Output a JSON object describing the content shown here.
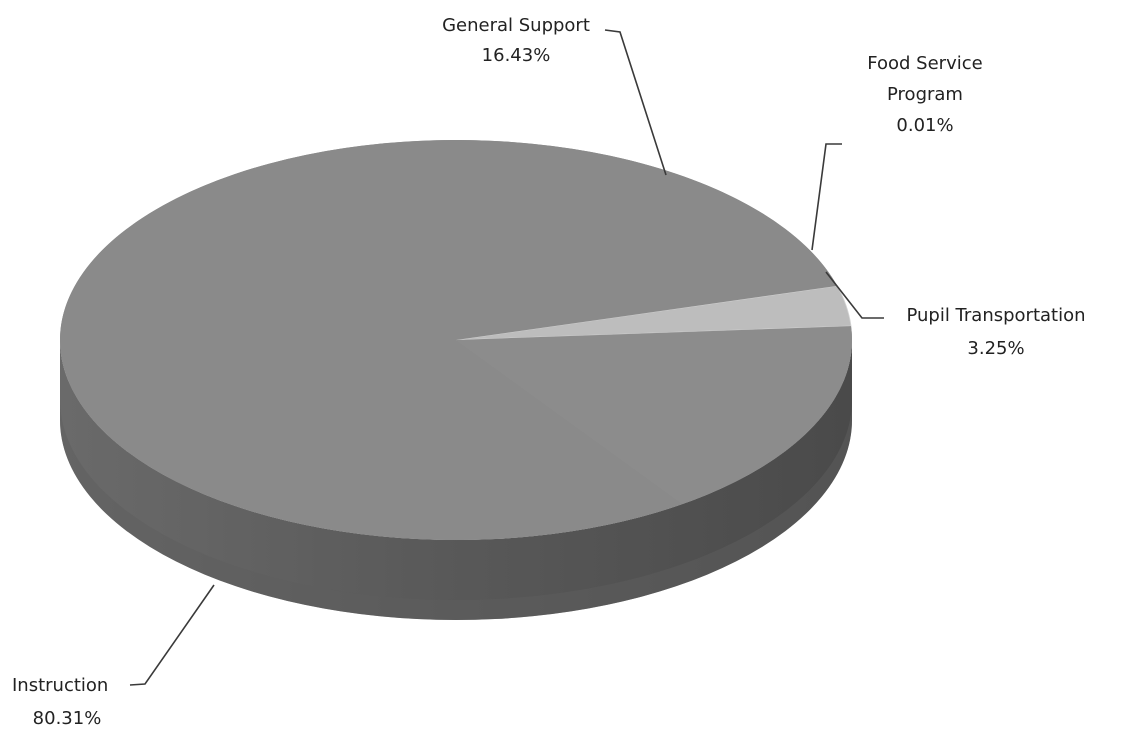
{
  "chart_data": {
    "type": "pie",
    "style": "3d",
    "title": "",
    "slices": [
      {
        "name": "Instruction",
        "value": 80.31,
        "label": "80.31%",
        "color": "#8a8a8a"
      },
      {
        "name": "General Support",
        "value": 16.43,
        "label": "16.43%",
        "color": "#8c8c8c"
      },
      {
        "name": "Food Service Program",
        "value": 0.01,
        "label": "0.01%",
        "color": "#9a9a9a"
      },
      {
        "name": "Pupil Transportation",
        "value": 3.25,
        "label": "3.25%",
        "color": "#bdbdbd"
      }
    ],
    "legend": "none",
    "labels": "outside-with-leader-lines"
  }
}
